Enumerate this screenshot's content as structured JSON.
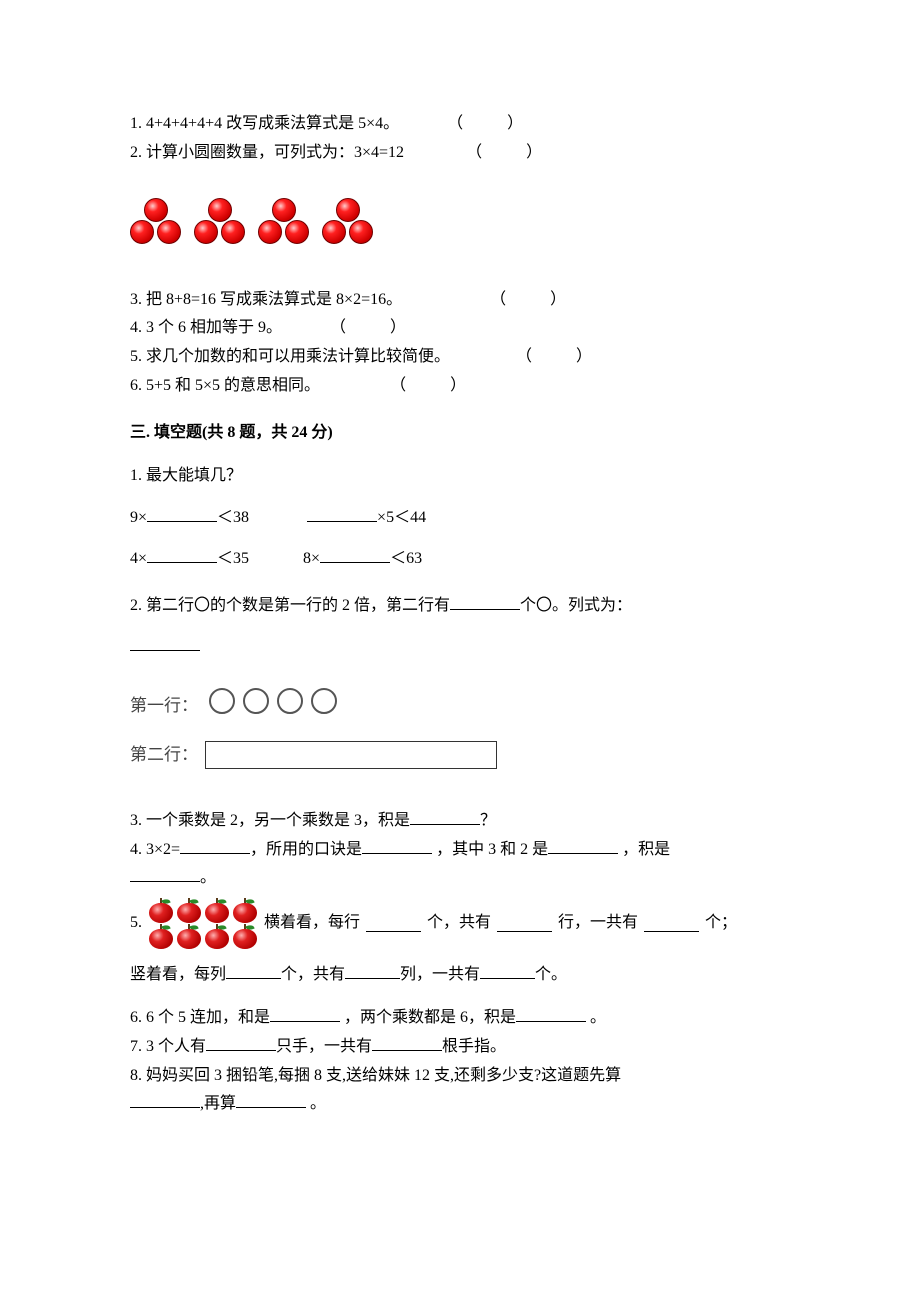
{
  "s2": {
    "q1": "1. 4+4+4+4+4 改写成乘法算式是 5×4。",
    "q2": "2. 计算小圆圈数量，可列式为：3×4=12",
    "circle_groups": {
      "groups": 4,
      "circles_per_group": 3,
      "fill_color": "#d00000",
      "highlight_color": "#ffcccc",
      "border_color": "#700000"
    },
    "q3": "3. 把 8+8=16 写成乘法算式是 8×2=16。",
    "q4": "4. 3 个 6 相加等于 9。",
    "q5": "5. 求几个加数的和可以用乘法计算比较简便。",
    "q6": "6. 5+5 和 5×5 的意思相同。",
    "paren_open": "（",
    "paren_close": "）"
  },
  "s3": {
    "title": "三. 填空题(共 8 题，共 24 分)",
    "q1": {
      "stem": "1. 最大能填几？",
      "r1a_pre": "9×",
      "r1a_post": "＜38",
      "r1b_pre": "",
      "r1b_post": "×5＜44",
      "r2a_pre": "4×",
      "r2a_post": "＜35",
      "r2b_pre": "8×",
      "r2b_post": "＜63"
    },
    "q2": {
      "stem_a": "2. 第二行〇的个数是第一行的 2 倍，第二行有",
      "stem_b": "个〇。列式为：",
      "row1_label": "第一行：",
      "row1_circles": 4,
      "row2_label": "第二行：",
      "circle_border": "#555555",
      "box_border": "#333333"
    },
    "q3": {
      "a": "3. 一个乘数是 2，另一个乘数是 3，积是",
      "b": "？"
    },
    "q4": {
      "a": "4. 3×2=",
      "b": "，所用的口诀是",
      "c": " ，其中 3 和 2 是",
      "d": " ，积是",
      "e": "。"
    },
    "q5": {
      "num": "5. ",
      "apples": {
        "rows": 2,
        "cols": 4,
        "color": "#b00000",
        "leaf": "#2a8a2a"
      },
      "a": " 横着看，每行",
      "b": "个，共有",
      "c": "行，一共有",
      "d": "个；",
      "line2a": "竖着看，每列",
      "line2b": "个，共有",
      "line2c": "列，一共有",
      "line2d": "个。"
    },
    "q6": {
      "a": "6. 6 个 5 连加，和是",
      "b": " ，两个乘数都是 6，积是",
      "c": " 。"
    },
    "q7": {
      "a": "7. 3 个人有",
      "b": "只手，一共有",
      "c": "根手指。"
    },
    "q8": {
      "a": "8. 妈妈买回 3 捆铅笔,每捆 8 支,送给妹妹 12 支,还剩多少支?这道题先算",
      "b": ",再算",
      "c": " 。"
    }
  }
}
